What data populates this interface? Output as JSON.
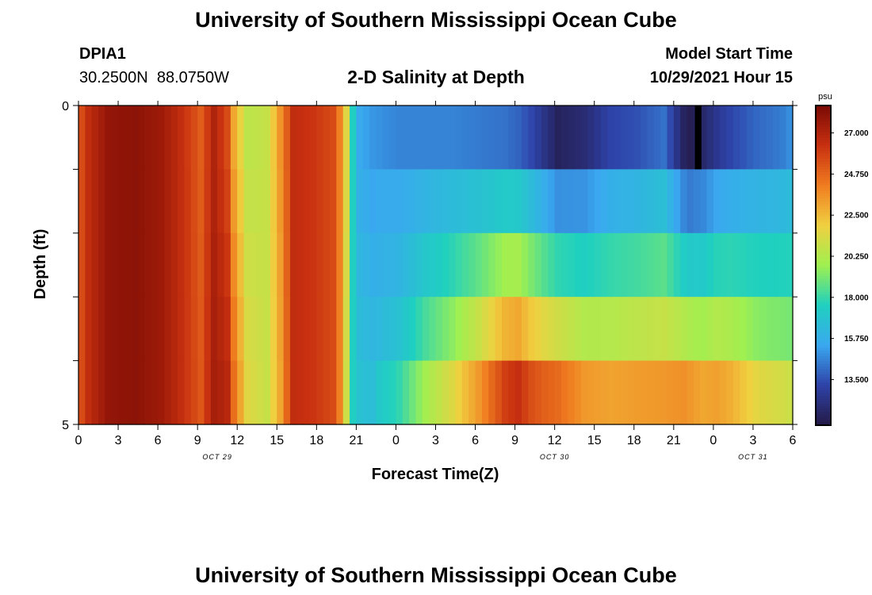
{
  "page": {
    "title_top": "University of Southern Mississippi Ocean Cube",
    "title_bottom": "University of Southern Mississippi Ocean Cube",
    "station_id": "DPIA1",
    "station_coords": "30.2500N  88.0750W",
    "plot_title": "2-D Salinity at Depth",
    "start_label": "Model Start Time",
    "start_value": "10/29/2021 Hour 15"
  },
  "chart_data": {
    "type": "heatmap",
    "title": "2-D Salinity at Depth",
    "xlabel": "Forecast Time(Z)",
    "ylabel": "Depth (ft)",
    "x_tick_labels": [
      "0",
      "3",
      "6",
      "9",
      "12",
      "15",
      "18",
      "21",
      "0",
      "3",
      "6",
      "9",
      "12",
      "15",
      "18",
      "21",
      "0",
      "3",
      "6"
    ],
    "date_labels": [
      {
        "label": "OCT 29",
        "tick_index": 3.5
      },
      {
        "label": "OCT 30",
        "tick_index": 12
      },
      {
        "label": "OCT 31",
        "tick_index": 17
      }
    ],
    "y_tick_labels": [
      "0",
      "5"
    ],
    "ylim": [
      0,
      5
    ],
    "colorbar": {
      "unit": "psu",
      "tick_labels": [
        "27.000",
        "24.750",
        "22.500",
        "20.250",
        "18.000",
        "15.750",
        "13.500"
      ],
      "tick_values": [
        27.0,
        24.75,
        22.5,
        20.25,
        18.0,
        15.75,
        13.5
      ],
      "range": [
        11.0,
        28.5
      ],
      "colors": [
        "#241a46",
        "#2e42a8",
        "#3aa8f0",
        "#1fd0c0",
        "#9ff050",
        "#f0d040",
        "#f07c20",
        "#c83010",
        "#7a0a04"
      ]
    },
    "n_time_steps": 108,
    "depth_layers": 5,
    "salinity_profile": {
      "hours": [
        0,
        1,
        4,
        8,
        12,
        15,
        18,
        20,
        22,
        23,
        25,
        28,
        30,
        32,
        35,
        38,
        39,
        40,
        41,
        42,
        44,
        48,
        52,
        56,
        60,
        64,
        66,
        68,
        70,
        72,
        76,
        80,
        84,
        88,
        91,
        92,
        94,
        96,
        98,
        100,
        102,
        104,
        106,
        107
      ],
      "surface": [
        25.5,
        26.5,
        27.8,
        28.0,
        27.5,
        26.5,
        25.0,
        27.0,
        25.5,
        23.0,
        20.5,
        20.8,
        23.5,
        26.5,
        26.2,
        25.5,
        24.0,
        21.5,
        17.5,
        15.5,
        15.0,
        14.6,
        14.6,
        14.6,
        14.4,
        14.2,
        13.9,
        13.3,
        12.4,
        11.5,
        12.0,
        13.2,
        13.5,
        14.2,
        11.6,
        11.3,
        11.8,
        12.6,
        13.2,
        13.6,
        14.0,
        14.2,
        14.5,
        14.8
      ],
      "bottom": [
        25.5,
        26.5,
        27.8,
        28.0,
        27.5,
        26.5,
        25.2,
        27.3,
        26.8,
        24.5,
        21.5,
        20.8,
        23.0,
        26.5,
        26.2,
        25.5,
        24.0,
        21.0,
        17.5,
        16.8,
        16.5,
        17.5,
        19.5,
        21.0,
        23.0,
        25.5,
        26.0,
        25.0,
        24.5,
        24.2,
        23.0,
        22.7,
        22.9,
        23.0,
        23.2,
        23.0,
        22.6,
        22.8,
        22.4,
        21.8,
        21.2,
        20.9,
        20.7,
        20.5
      ],
      "layer_offsets": [
        0.0,
        0.2,
        0.0,
        0.0,
        0.4
      ]
    }
  }
}
